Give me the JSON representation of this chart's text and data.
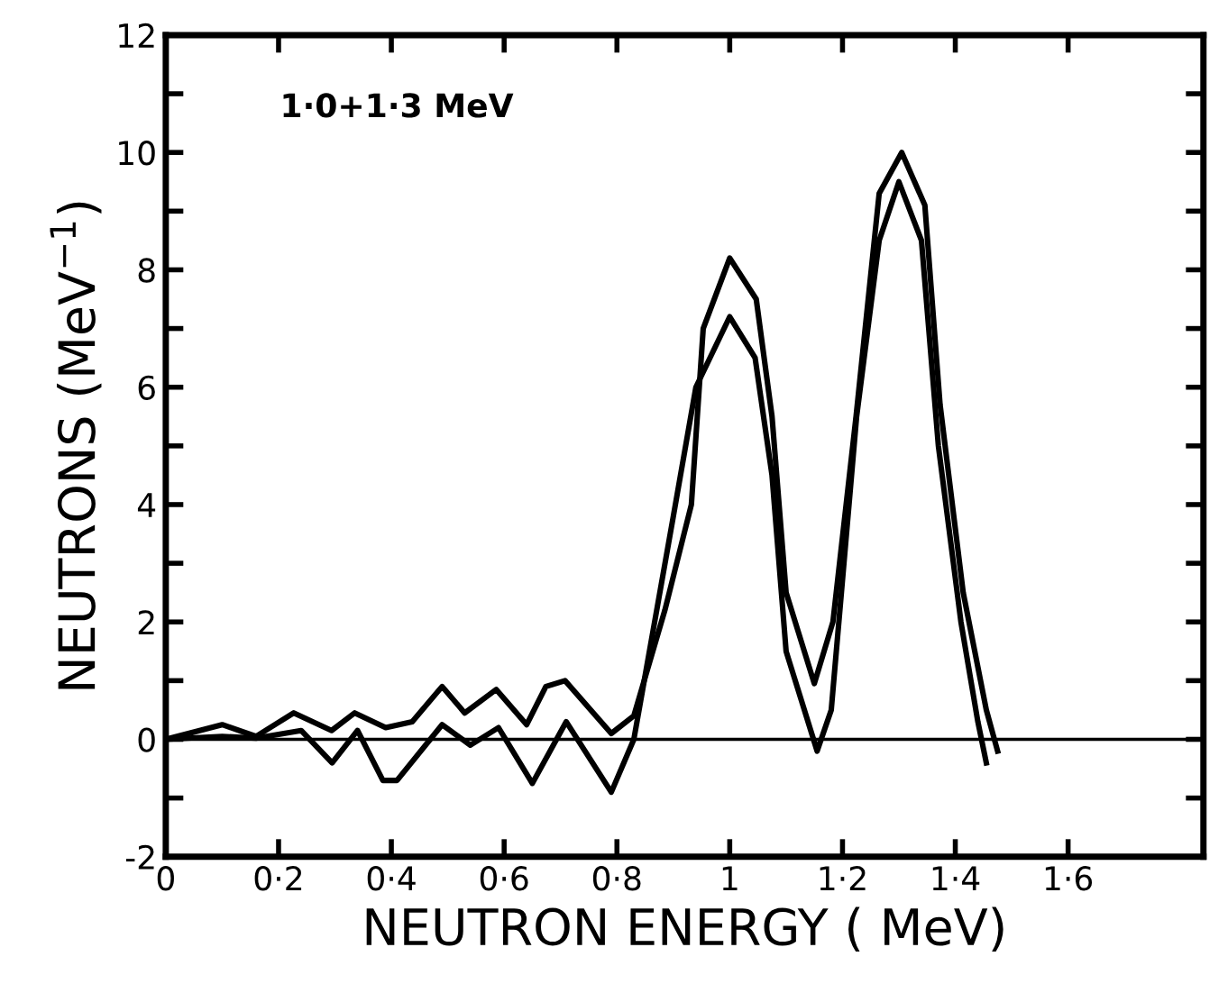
{
  "chart_data": {
    "type": "line",
    "xlabel": "NEUTRON ENERGY ( MeV)",
    "ylabel": "NEUTRONS (MeV$^{−1}$)",
    "annotations": [
      "1·0+1·3 MeV"
    ],
    "series": [
      {
        "color": "#000000",
        "x": [
          0,
          0.1,
          0.16,
          0.227,
          0.294,
          0.335,
          0.39,
          0.437,
          0.49,
          0.53,
          0.586,
          0.64,
          0.674,
          0.708,
          0.79,
          0.83,
          0.885,
          0.932,
          0.953,
          1.0,
          1.047,
          1.075,
          1.1,
          1.15,
          1.183,
          1.224,
          1.265,
          1.305,
          1.346,
          1.373,
          1.414,
          1.455,
          1.475
        ],
        "values": [
          0,
          0.25,
          0.05,
          0.45,
          0.15,
          0.45,
          0.2,
          0.3,
          0.9,
          0.45,
          0.85,
          0.25,
          0.9,
          1.0,
          0.1,
          0.4,
          2.2,
          4.0,
          7.0,
          8.2,
          7.5,
          5.5,
          2.5,
          0.95,
          2.0,
          5.5,
          9.3,
          10.0,
          9.1,
          5.7,
          2.5,
          0.5,
          -0.2
        ]
      },
      {
        "color": "#000000",
        "x": [
          0,
          0.1,
          0.16,
          0.24,
          0.295,
          0.34,
          0.385,
          0.41,
          0.49,
          0.54,
          0.59,
          0.65,
          0.71,
          0.79,
          0.83,
          0.9,
          0.94,
          1.0,
          1.045,
          1.075,
          1.1,
          1.155,
          1.18,
          1.225,
          1.265,
          1.3,
          1.34,
          1.37,
          1.41,
          1.44,
          1.455
        ],
        "values": [
          0,
          0.05,
          0.02,
          0.15,
          -0.4,
          0.15,
          -0.7,
          -0.7,
          0.25,
          -0.1,
          0.2,
          -0.75,
          0.3,
          -0.9,
          0.0,
          3.8,
          6.0,
          7.2,
          6.5,
          4.5,
          1.5,
          -0.2,
          0.5,
          5.5,
          8.5,
          9.5,
          8.5,
          5.0,
          2.0,
          0.3,
          -0.4
        ]
      }
    ],
    "xlim": [
      0,
      1.84
    ],
    "ylim": [
      -2,
      12
    ],
    "xticks": [
      0,
      {
        "value": 0.2,
        "label": "0·2"
      },
      {
        "value": 0.4,
        "label": "0·4"
      },
      {
        "value": 0.6,
        "label": "0·6"
      },
      {
        "value": 0.8,
        "label": "0·8"
      },
      1,
      {
        "value": 1.2,
        "label": "1·2"
      },
      {
        "value": 1.4,
        "label": "1·4"
      },
      {
        "value": 1.6,
        "label": "1·6"
      }
    ],
    "yticks": [
      -2,
      {
        "value": -1,
        "label": null
      },
      0,
      {
        "value": 1,
        "label": null
      },
      2,
      {
        "value": 3,
        "label": null
      },
      4,
      {
        "value": 5,
        "label": null
      },
      6,
      {
        "value": 7,
        "label": null
      },
      8,
      {
        "value": 9,
        "label": null
      },
      10,
      {
        "value": 11,
        "label": null
      },
      12
    ],
    "ref_lines": [
      {
        "axis": "y",
        "value": 0,
        "color": "#000000"
      }
    ],
    "grid": false,
    "legend": false,
    "marker": "none",
    "line_style": "solid"
  }
}
